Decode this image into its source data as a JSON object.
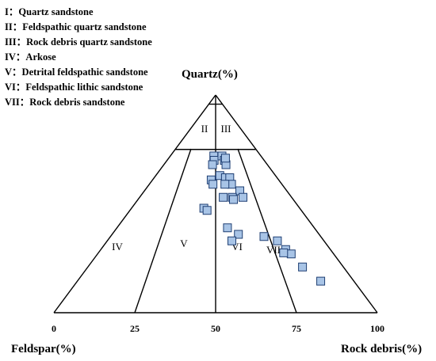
{
  "legend": [
    {
      "numeral": "I",
      "name": "Quartz sandstone"
    },
    {
      "numeral": "II",
      "name": "Feldspathic quartz sandstone"
    },
    {
      "numeral": "III",
      "name": "Rock debris quartz sandstone"
    },
    {
      "numeral": "IV",
      "name": "Arkose"
    },
    {
      "numeral": "V",
      "name": "Detrital feldspathic sandstone"
    },
    {
      "numeral": "VI",
      "name": "Feldspathic lithic sandstone"
    },
    {
      "numeral": "VII",
      "name": "Rock debris sandstone"
    }
  ],
  "legend_separator": "：",
  "apex_label": "Quartz(%)",
  "left_label": "Feldspar(%)",
  "right_label": "Rock debris(%)",
  "base_ticks": [
    "0",
    "25",
    "50",
    "75",
    "100"
  ],
  "region_labels": {
    "II": "II",
    "III": "III",
    "IV": "IV",
    "V": "V",
    "VI": "VI",
    "VII": "VII"
  },
  "colors": {
    "point_fill": "#a8c4e6",
    "point_stroke": "#1f3f73",
    "lines": "#000000"
  },
  "chart_data": {
    "type": "scatter",
    "xlabel": "Rock debris(%)",
    "xlim": [
      0,
      100
    ],
    "ylim": [
      0,
      100
    ],
    "note": "x = percent position along base from Feldspar (0) to Rock debris (100); y = percent toward Quartz apex",
    "points": [
      {
        "x": 48,
        "y": 72
      },
      {
        "x": 48.5,
        "y": 70
      },
      {
        "x": 47,
        "y": 68
      },
      {
        "x": 57,
        "y": 72
      },
      {
        "x": 59,
        "y": 70
      },
      {
        "x": 60,
        "y": 68
      },
      {
        "x": 60.5,
        "y": 71
      },
      {
        "x": 46.5,
        "y": 61
      },
      {
        "x": 48,
        "y": 59
      },
      {
        "x": 53.5,
        "y": 63
      },
      {
        "x": 58,
        "y": 62
      },
      {
        "x": 61.5,
        "y": 62
      },
      {
        "x": 62,
        "y": 59
      },
      {
        "x": 57,
        "y": 59
      },
      {
        "x": 67,
        "y": 56
      },
      {
        "x": 68,
        "y": 53
      },
      {
        "x": 55,
        "y": 53
      },
      {
        "x": 61,
        "y": 53
      },
      {
        "x": 61.5,
        "y": 52
      },
      {
        "x": 43,
        "y": 48
      },
      {
        "x": 45,
        "y": 47
      },
      {
        "x": 56,
        "y": 39
      },
      {
        "x": 61,
        "y": 36
      },
      {
        "x": 57.5,
        "y": 33
      },
      {
        "x": 73,
        "y": 35
      },
      {
        "x": 78.5,
        "y": 33
      },
      {
        "x": 80.5,
        "y": 29
      },
      {
        "x": 82,
        "y": 27
      },
      {
        "x": 79,
        "y": 27.5
      },
      {
        "x": 84,
        "y": 21
      },
      {
        "x": 88,
        "y": 14.5
      }
    ]
  }
}
